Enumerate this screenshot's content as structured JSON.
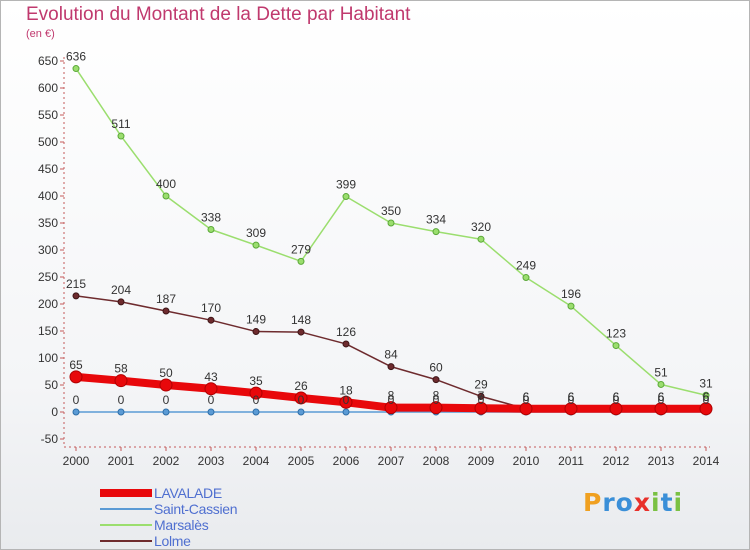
{
  "title": "Evolution du Montant de la Dette par Habitant",
  "subtitle": "(en €)",
  "logo": {
    "letters": [
      "P",
      "r",
      "o",
      "x",
      "i",
      "t",
      "i"
    ],
    "colors": [
      "#f0a020",
      "#3a8fd8",
      "#3a8fd8",
      "#e8302a",
      "#7ac143",
      "#3a8fd8",
      "#7ac143"
    ]
  },
  "chart_data": {
    "type": "line",
    "title": "Evolution du Montant de la Dette par Habitant",
    "ylabel": "(en €)",
    "x": [
      "2000",
      "2001",
      "2002",
      "2003",
      "2004",
      "2005",
      "2006",
      "2007",
      "2008",
      "2009",
      "2010",
      "2011",
      "2012",
      "2013",
      "2014"
    ],
    "ylim": [
      -50,
      650
    ],
    "yticks": [
      "-50",
      "0",
      "50",
      "100",
      "150",
      "200",
      "250",
      "300",
      "350",
      "400",
      "450",
      "500",
      "550",
      "600",
      "650"
    ],
    "grid": false,
    "legend_position": "bottom-left",
    "series": [
      {
        "name": "LAVALADE",
        "color": "#e8080b",
        "values": [
          65,
          58,
          50,
          43,
          35,
          26,
          18,
          8,
          8,
          7,
          6,
          6,
          6,
          6,
          6
        ],
        "labels": [
          "65",
          "58",
          "50",
          "43",
          "35",
          "26",
          "18",
          "8",
          "8",
          "7",
          "6",
          "6",
          "6",
          "6",
          "6"
        ]
      },
      {
        "name": "Saint-Cassien",
        "color": "#5b9bd5",
        "values": [
          0,
          0,
          0,
          0,
          0,
          0,
          0,
          0,
          0,
          0,
          0,
          0,
          0,
          0,
          0
        ],
        "labels": [
          "0",
          "0",
          "0",
          "0",
          "0",
          "0",
          "0",
          "0",
          "0",
          "0",
          "0",
          "0",
          "0",
          "0",
          "0"
        ]
      },
      {
        "name": "Marsalès",
        "color": "#9bde6e",
        "values": [
          636,
          511,
          400,
          338,
          309,
          279,
          399,
          350,
          334,
          320,
          249,
          196,
          123,
          51,
          31
        ],
        "labels": [
          "636",
          "511",
          "400",
          "338",
          "309",
          "279",
          "399",
          "350",
          "334",
          "320",
          "249",
          "196",
          "123",
          "51",
          "31"
        ]
      },
      {
        "name": "Lolme",
        "color": "#6e2b2e",
        "values": [
          215,
          204,
          187,
          170,
          149,
          148,
          126,
          84,
          60,
          29,
          6,
          6,
          6,
          6,
          6
        ],
        "labels": [
          "215",
          "204",
          "187",
          "170",
          "149",
          "148",
          "126",
          "84",
          "60",
          "29",
          "6",
          "6",
          "6",
          "6",
          "6"
        ]
      }
    ]
  }
}
